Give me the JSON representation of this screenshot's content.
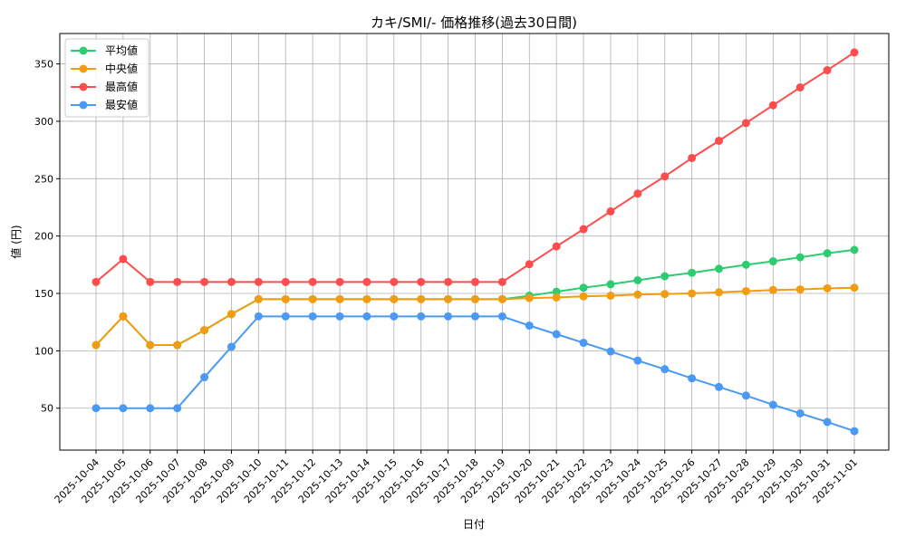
{
  "chart_data": {
    "type": "line",
    "title": "カキ/SMI/- 価格推移(過去30日間)",
    "xlabel": "日付",
    "ylabel": "値 (円)",
    "ylim": [
      13.5,
      376.5
    ],
    "yticks": [
      50,
      100,
      150,
      200,
      250,
      300,
      350
    ],
    "grid": true,
    "legend_position": "top-left",
    "x": [
      "2025-10-04",
      "2025-10-05",
      "2025-10-06",
      "2025-10-07",
      "2025-10-08",
      "2025-10-09",
      "2025-10-10",
      "2025-10-11",
      "2025-10-12",
      "2025-10-13",
      "2025-10-14",
      "2025-10-15",
      "2025-10-16",
      "2025-10-17",
      "2025-10-18",
      "2025-10-19",
      "2025-10-20",
      "2025-10-21",
      "2025-10-22",
      "2025-10-23",
      "2025-10-24",
      "2025-10-25",
      "2025-10-26",
      "2025-10-27",
      "2025-10-28",
      "2025-10-29",
      "2025-10-30",
      "2025-10-31",
      "2025-11-01"
    ],
    "series": [
      {
        "name": "平均値",
        "color": "#2ecc71",
        "values": [
          105,
          130,
          105,
          105,
          118,
          132,
          145,
          145,
          145,
          145,
          145,
          145,
          145,
          145,
          145,
          145,
          148,
          151.5,
          155,
          158,
          161.5,
          165,
          168,
          171.5,
          175,
          178,
          181.5,
          185,
          188
        ]
      },
      {
        "name": "中央値",
        "color": "#f39c12",
        "values": [
          105,
          130,
          105,
          105,
          118,
          132,
          145,
          145,
          145,
          145,
          145,
          145,
          145,
          145,
          145,
          145,
          146,
          146.5,
          147.5,
          148,
          149,
          149.5,
          150,
          151,
          152,
          153,
          153.5,
          154.5,
          155
        ]
      },
      {
        "name": "最高値",
        "color": "#ff4c4c",
        "values": [
          160,
          180,
          160,
          160,
          160,
          160,
          160,
          160,
          160,
          160,
          160,
          160,
          160,
          160,
          160,
          160,
          175.5,
          191,
          206,
          221.5,
          237,
          252,
          268,
          283,
          298.5,
          314,
          329.5,
          344.5,
          360
        ]
      },
      {
        "name": "最安値",
        "color": "#4a9af5",
        "values": [
          50,
          50,
          50,
          50,
          77,
          103.5,
          130,
          130,
          130,
          130,
          130,
          130,
          130,
          130,
          130,
          130,
          122,
          114.5,
          107,
          99.5,
          91.5,
          84,
          76,
          68.5,
          61,
          53,
          45.5,
          38,
          30
        ]
      }
    ]
  }
}
